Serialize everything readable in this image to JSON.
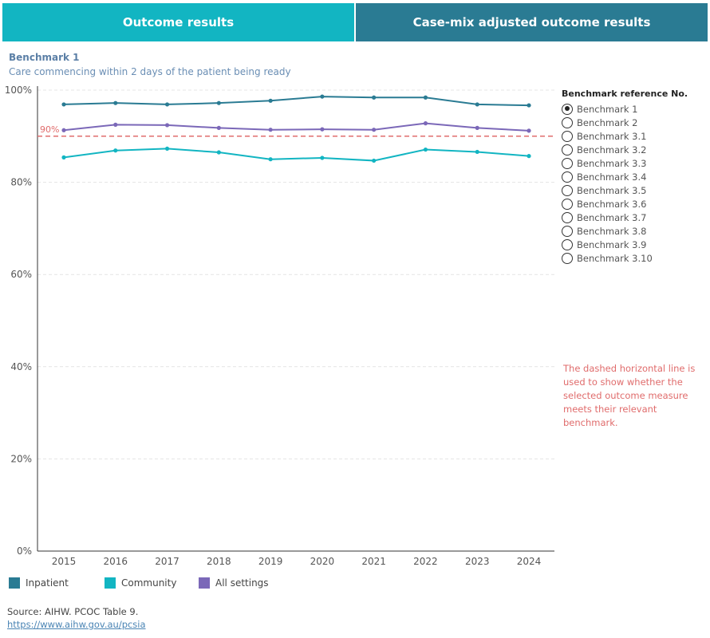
{
  "tabs": [
    {
      "label": "Outcome results",
      "active": true,
      "color": "#12b5c2"
    },
    {
      "label": "Case-mix adjusted outcome results",
      "active": false,
      "color": "#2a7b93"
    }
  ],
  "benchmark": {
    "title": "Benchmark 1",
    "subtitle": "Care commencing within 2 days of the patient being ready"
  },
  "reference": {
    "title": "Benchmark reference No.",
    "selected": "Benchmark 1",
    "options": [
      "Benchmark 1",
      "Benchmark 2",
      "Benchmark 3.1",
      "Benchmark 3.2",
      "Benchmark 3.3",
      "Benchmark 3.4",
      "Benchmark 3.5",
      "Benchmark 3.6",
      "Benchmark 3.7",
      "Benchmark 3.8",
      "Benchmark 3.9",
      "Benchmark 3.10"
    ]
  },
  "note": "The dashed horizontal line is used to show whether the selected outcome measure meets their relevant benchmark.",
  "legend": [
    {
      "label": "Inpatient",
      "color": "#2a7b93"
    },
    {
      "label": "Community",
      "color": "#12b5c2"
    },
    {
      "label": "All settings",
      "color": "#7b68b8"
    }
  ],
  "source": "Source: AIHW. PCOC Table 9.",
  "link": "https://www.aihw.gov.au/pcsia",
  "chart_data": {
    "type": "line",
    "x": [
      "2015",
      "2016",
      "2017",
      "2018",
      "2019",
      "2020",
      "2021",
      "2022",
      "2023",
      "2024"
    ],
    "series": [
      {
        "name": "Inpatient",
        "color": "#2a7b93",
        "values": [
          96.9,
          97.2,
          96.9,
          97.2,
          97.7,
          98.6,
          98.4,
          98.4,
          96.9,
          96.7
        ]
      },
      {
        "name": "All settings",
        "color": "#7b68b8",
        "values": [
          91.3,
          92.5,
          92.4,
          91.8,
          91.4,
          91.5,
          91.4,
          92.8,
          91.8,
          91.2
        ]
      },
      {
        "name": "Community",
        "color": "#12b5c2",
        "values": [
          85.4,
          86.9,
          87.3,
          86.5,
          85.0,
          85.3,
          84.7,
          87.1,
          86.6,
          85.7
        ]
      }
    ],
    "benchmark": {
      "value": 90,
      "label": "90%",
      "color": "#e06c6c"
    },
    "yticks": [
      "0%",
      "20%",
      "40%",
      "60%",
      "80%",
      "100%"
    ],
    "ylim": [
      0,
      100
    ],
    "grid": true,
    "legend_position": "bottom"
  }
}
